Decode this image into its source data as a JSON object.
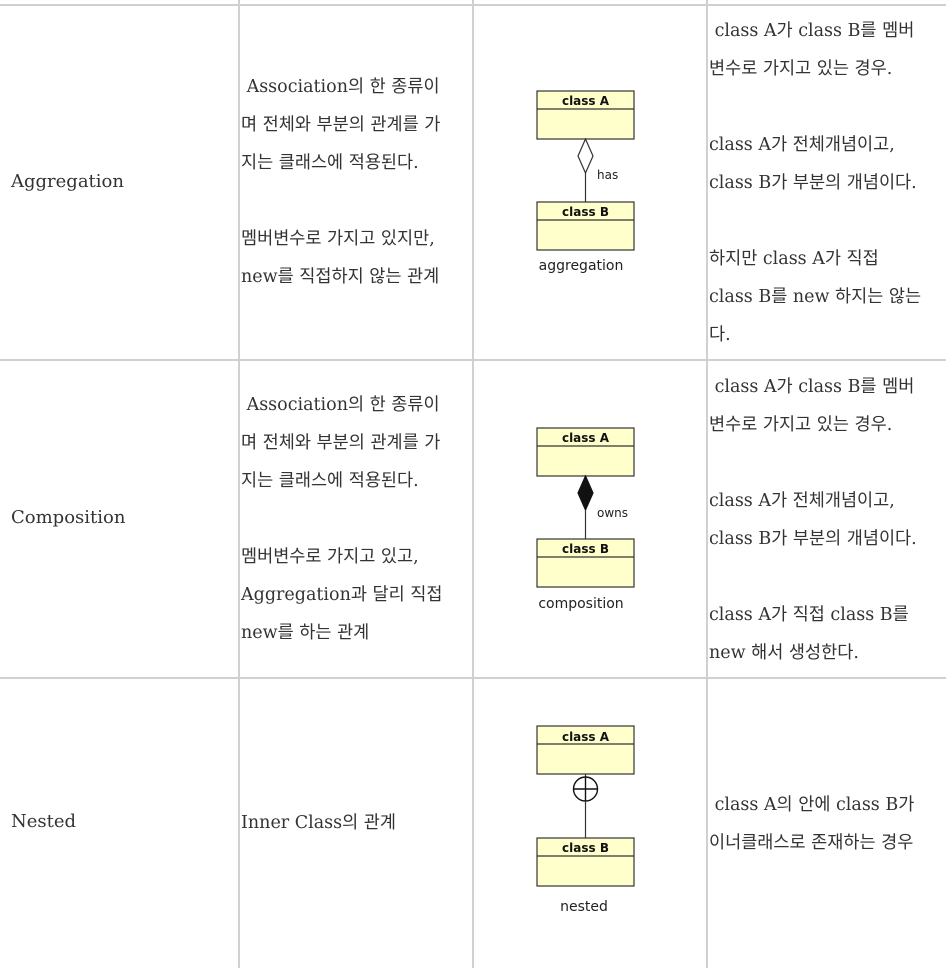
{
  "rows": [
    {
      "name": "Aggregation",
      "description": {
        "p1": [
          " Association의 한 종류이",
          "며 전체와 부분의 관계를 가",
          "지는 클래스에 적용된다."
        ],
        "p2": [
          "멤버변수로 가지고 있지만,",
          "new를 직접하지 않는 관계"
        ]
      },
      "diagram": {
        "class_a": "class A",
        "class_b": "class B",
        "relation_label": "has",
        "caption": "aggregation",
        "symbol": "hollow-diamond"
      },
      "detail": {
        "p1": [
          " class A가 class B를 멤버",
          "변수로 가지고 있는 경우."
        ],
        "p2": [
          "class A가 전체개념이고,",
          "class B가 부분의 개념이다."
        ],
        "p3": [
          "하지만 class A가 직접",
          "class B를 new 하지는 않는",
          "다."
        ]
      }
    },
    {
      "name": "Composition",
      "description": {
        "p1": [
          " Association의 한 종류이",
          "며 전체와 부분의 관계를 가",
          "지는 클래스에 적용된다."
        ],
        "p2": [
          "멤버변수로 가지고 있고,",
          "Aggregation과 달리 직접",
          "new를 하는 관계"
        ]
      },
      "diagram": {
        "class_a": "class A",
        "class_b": "class B",
        "relation_label": "owns",
        "caption": "composition",
        "symbol": "filled-diamond"
      },
      "detail": {
        "p1": [
          " class A가 class B를 멤버",
          "변수로 가지고 있는 경우."
        ],
        "p2": [
          "class A가 전체개념이고,",
          "class B가 부분의 개념이다."
        ],
        "p3": [
          "class A가 직접 class B를",
          "new 해서 생성한다."
        ]
      }
    },
    {
      "name": "Nested",
      "description": {
        "p1": [
          "Inner Class의 관계"
        ]
      },
      "diagram": {
        "class_a": "class A",
        "class_b": "class B",
        "caption": "nested",
        "symbol": "circle-plus"
      },
      "detail": {
        "p1": [
          " class A의 안에 class B가",
          "이너클래스로 존재하는 경우"
        ]
      }
    }
  ],
  "colors": {
    "border": "#d0d0d0",
    "text": "#333333",
    "uml_box_fill": "#ffffcc",
    "uml_box_stroke": "#333333"
  }
}
